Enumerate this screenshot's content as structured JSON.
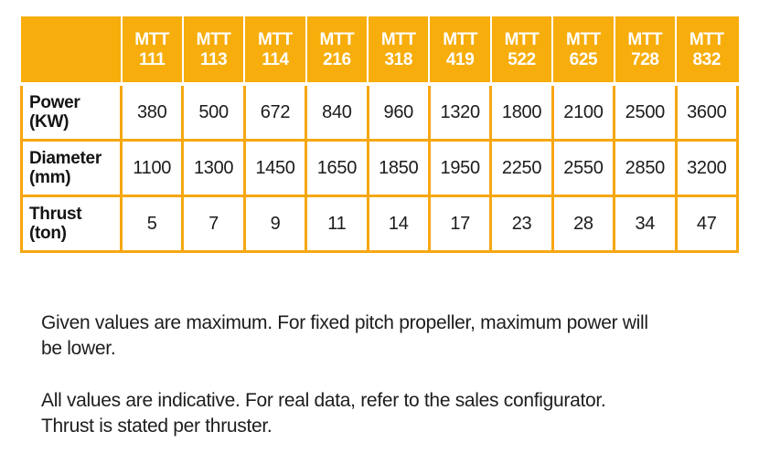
{
  "colors": {
    "accent": "#F7AD0B",
    "border": "#F6A713",
    "header_text": "#FFFFFF",
    "body_text": "#1D1D1D"
  },
  "table": {
    "corner_label": "",
    "column_headers": [
      "MTT\n111",
      "MTT\n113",
      "MTT\n114",
      "MTT\n216",
      "MTT\n318",
      "MTT\n419",
      "MTT\n522",
      "MTT\n625",
      "MTT\n728",
      "MTT\n832"
    ],
    "rows": [
      {
        "label": "Power\n(KW)",
        "values": [
          "380",
          "500",
          "672",
          "840",
          "960",
          "1320",
          "1800",
          "2100",
          "2500",
          "3600"
        ]
      },
      {
        "label": "Diameter\n(mm)",
        "values": [
          "1100",
          "1300",
          "1450",
          "1650",
          "1850",
          "1950",
          "2250",
          "2550",
          "2850",
          "3200"
        ]
      },
      {
        "label": "Thrust\n(ton)",
        "values": [
          "5",
          "7",
          "9",
          "11",
          "14",
          "17",
          "23",
          "28",
          "34",
          "47"
        ]
      }
    ]
  },
  "notes": [
    "Given values are maximum. For fixed pitch propeller, maximum power will\nbe lower.",
    "All values are indicative. For real data, refer to the sales configurator.\nThrust is stated per thruster."
  ]
}
